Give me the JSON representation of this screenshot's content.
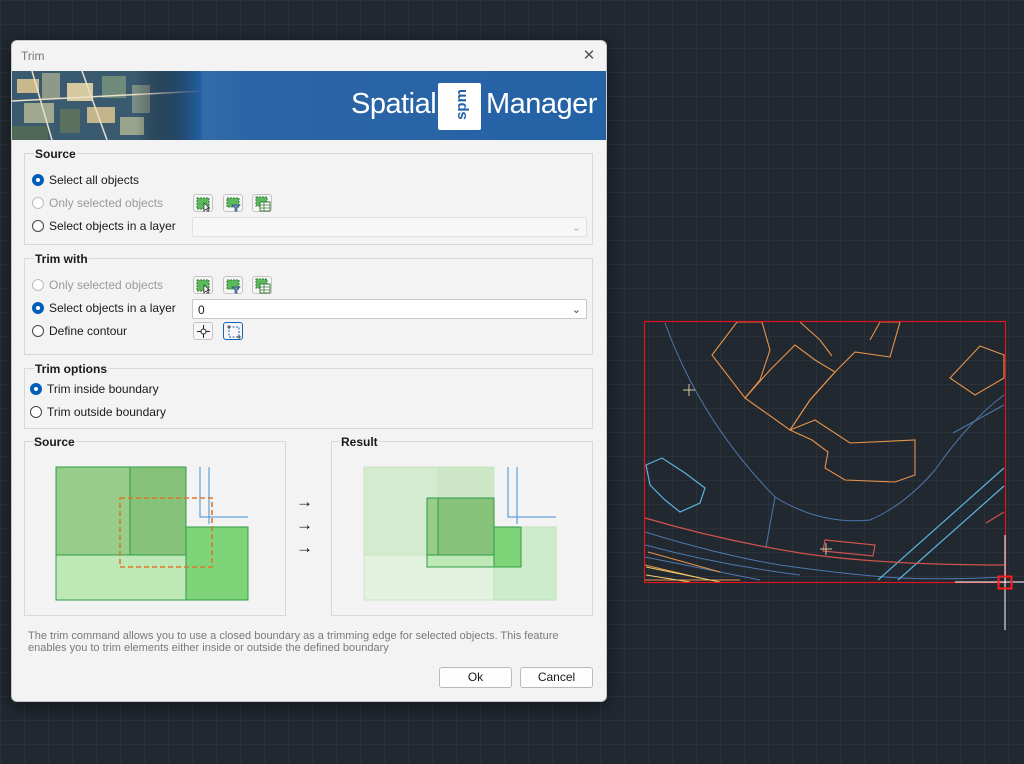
{
  "dialog": {
    "title": "Trim",
    "close_glyph": "✕",
    "brand": {
      "left_text": "Spatial",
      "logo_text": "spm",
      "right_text": "Manager"
    }
  },
  "source_group": {
    "title": "Source",
    "options": [
      {
        "label": "Select all objects",
        "checked": true,
        "enabled": true
      },
      {
        "label": "Only selected objects",
        "checked": false,
        "enabled": false
      },
      {
        "label": "Select objects in a layer",
        "checked": false,
        "enabled": true
      }
    ],
    "layer_value": ""
  },
  "trim_with_group": {
    "title": "Trim with",
    "options": [
      {
        "label": "Only selected objects",
        "checked": false,
        "enabled": false
      },
      {
        "label": "Select objects in a layer",
        "checked": true,
        "enabled": true
      },
      {
        "label": "Define contour",
        "checked": false,
        "enabled": true
      }
    ],
    "layer_value": "0"
  },
  "trim_options_group": {
    "title": "Trim options",
    "options": [
      {
        "label": "Trim inside boundary",
        "checked": true
      },
      {
        "label": "Trim outside boundary",
        "checked": false
      }
    ]
  },
  "previews": {
    "source_title": "Source",
    "result_title": "Result",
    "arrow_glyph": "→"
  },
  "description": "The trim command allows you to use a closed boundary as a trimming edge for selected objects. This feature enables you to trim elements either inside or outside the defined boundary",
  "buttons": {
    "ok": "Ok",
    "cancel": "Cancel"
  },
  "icons": {
    "select_pick": "select-objects-pick-icon",
    "select_filter": "select-objects-filter-icon",
    "select_table": "select-objects-table-icon",
    "pick_point": "pick-point-icon",
    "select_contour": "select-contour-icon"
  },
  "colors": {
    "accent": "#005fb8",
    "canvas_bg": "#212830",
    "boundary": "#e0141e",
    "buildings": "#e8934a",
    "roads": "#4a78b0",
    "water": "#5ab4e0"
  }
}
